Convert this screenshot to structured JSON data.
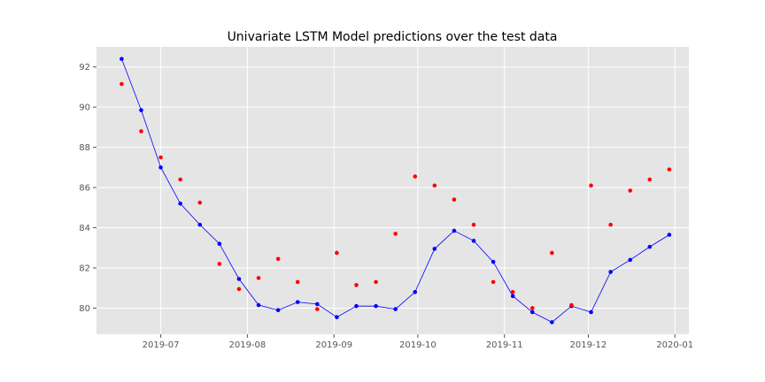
{
  "chart_data": {
    "type": "line",
    "title": "Univariate LSTM Model predictions over the test data",
    "xlabel": "",
    "ylabel": "",
    "x_axis": {
      "type": "date",
      "range": [
        "2019-06-08",
        "2020-01-06"
      ],
      "ticks": [
        "2019-07",
        "2019-08",
        "2019-09",
        "2019-10",
        "2019-11",
        "2019-12",
        "2020-01"
      ]
    },
    "y_axis": {
      "range": [
        78.7,
        93.0
      ],
      "ticks": [
        "80",
        "82",
        "84",
        "86",
        "88",
        "90",
        "92"
      ]
    },
    "grid": true,
    "legend": "none",
    "x": [
      "2019-06-17",
      "2019-06-24",
      "2019-07-01",
      "2019-07-08",
      "2019-07-15",
      "2019-07-22",
      "2019-07-29",
      "2019-08-05",
      "2019-08-12",
      "2019-08-19",
      "2019-08-26",
      "2019-09-02",
      "2019-09-09",
      "2019-09-16",
      "2019-09-23",
      "2019-09-30",
      "2019-10-07",
      "2019-10-14",
      "2019-10-21",
      "2019-10-28",
      "2019-11-04",
      "2019-11-11",
      "2019-11-18",
      "2019-11-25",
      "2019-12-02",
      "2019-12-09",
      "2019-12-16",
      "2019-12-23",
      "2019-12-30"
    ],
    "series": [
      {
        "style": "line-with-markers",
        "color": "#0000ff",
        "values": [
          92.4,
          89.85,
          87.0,
          85.2,
          84.15,
          83.2,
          81.45,
          80.15,
          79.9,
          80.3,
          80.2,
          79.55,
          80.1,
          80.1,
          79.95,
          80.8,
          82.95,
          83.85,
          83.35,
          82.3,
          80.6,
          79.8,
          79.3,
          80.1,
          79.8,
          81.8,
          82.4,
          83.05,
          83.65
        ]
      },
      {
        "style": "markers",
        "color": "#ff0000",
        "values": [
          91.15,
          88.8,
          87.5,
          86.4,
          85.25,
          82.2,
          80.95,
          81.5,
          82.45,
          81.3,
          79.95,
          82.75,
          81.15,
          81.3,
          83.7,
          86.55,
          86.1,
          85.4,
          84.15,
          81.3,
          80.8,
          80.0,
          82.75,
          80.15,
          86.1,
          84.15,
          85.85,
          86.4,
          86.9
        ]
      }
    ]
  }
}
